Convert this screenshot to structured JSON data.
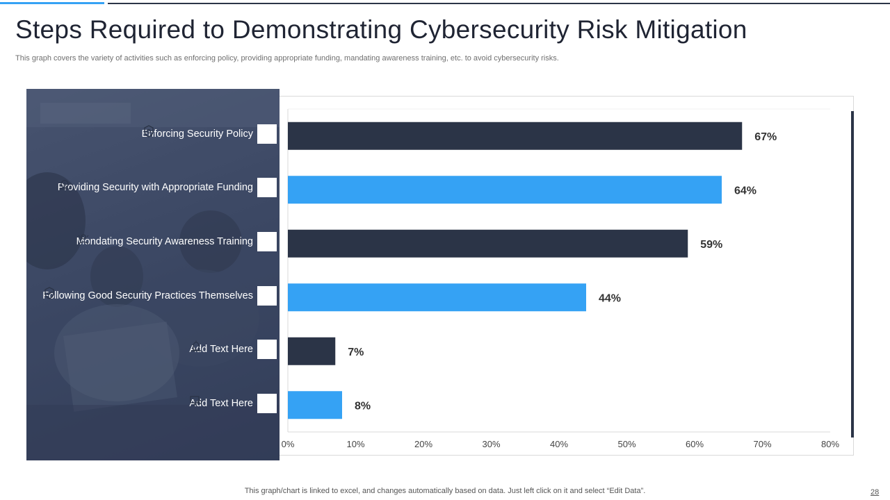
{
  "slide": {
    "title": "Steps Required to Demonstrating Cybersecurity Risk Mitigation",
    "subtitle": "This graph covers the variety of activities such as enforcing policy, providing appropriate funding, mandating awareness training, etc. to avoid cybersecurity risks.",
    "footer_note": "This graph/chart is linked to excel,  and changes automatically based on data. Just left click on it and select “Edit Data”.",
    "page_number": "28"
  },
  "colors": {
    "dark_navy": "#2b3447",
    "accent_blue": "#35a2f4",
    "label_text": "#333333"
  },
  "categories": [
    {
      "label": "Enforcing Security Policy",
      "icon": "shield-lock-icon"
    },
    {
      "label": "Providing Security with Appropriate Funding",
      "icon": "dollar-hand-icon"
    },
    {
      "label": "Mondating Security Awareness Training",
      "icon": "person-training-icon"
    },
    {
      "label": "Following Good Security Practices Themselves",
      "icon": "shield-check-icon"
    },
    {
      "label": "Add Text Here",
      "icon": "alarm-icon"
    },
    {
      "label": "Add Text Here",
      "icon": "computer-gear-icon"
    }
  ],
  "chart_data": {
    "type": "bar",
    "orientation": "horizontal",
    "title": "",
    "xlabel": "",
    "ylabel": "",
    "categories": [
      "Enforcing Security Policy",
      "Providing Security with Appropriate Funding",
      "Mondating Security Awareness Training",
      "Following Good Security Practices Themselves",
      "Add Text Here",
      "Add Text Here"
    ],
    "values": [
      67,
      64,
      59,
      44,
      7,
      8
    ],
    "value_labels": [
      "67%",
      "64%",
      "59%",
      "44%",
      "7%",
      "8%"
    ],
    "bar_colors": [
      "#2b3447",
      "#35a2f4",
      "#2b3447",
      "#35a2f4",
      "#2b3447",
      "#35a2f4"
    ],
    "xlim": [
      0,
      80
    ],
    "xticks": [
      0,
      10,
      20,
      30,
      40,
      50,
      60,
      70,
      80
    ],
    "xtick_labels": [
      "0%",
      "10%",
      "20%",
      "30%",
      "40%",
      "50%",
      "60%",
      "70%",
      "80%"
    ],
    "grid": false,
    "legend": "none"
  }
}
